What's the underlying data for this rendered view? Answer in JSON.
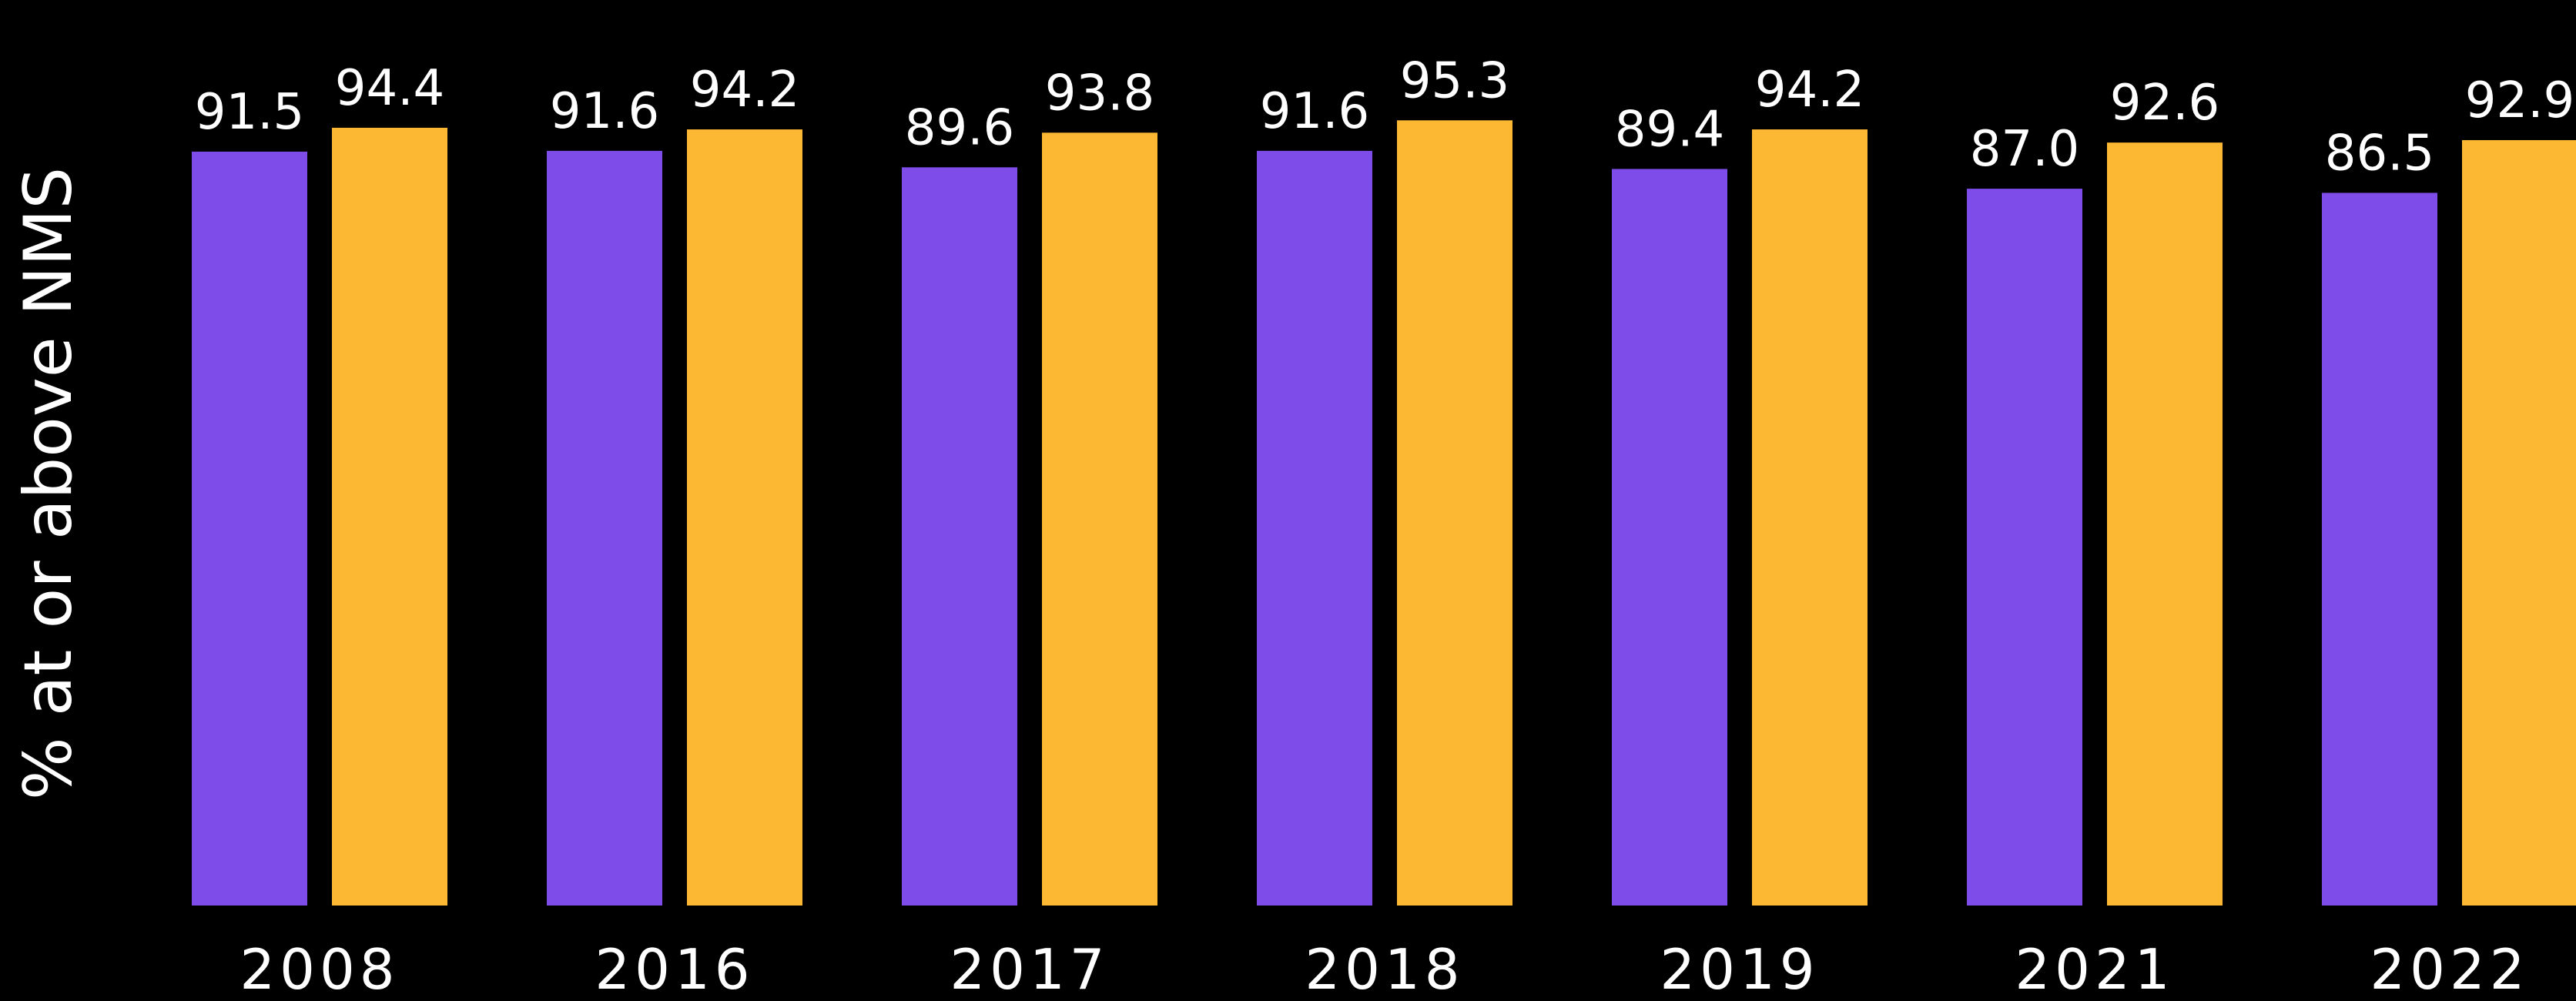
{
  "chart_data": {
    "type": "bar",
    "title": "",
    "xlabel": "",
    "ylabel": "% at or above NMS",
    "categories": [
      "2008",
      "2016",
      "2017",
      "2018",
      "2019",
      "2021",
      "2022"
    ],
    "series": [
      {
        "color": "#7e4ce8",
        "values": [
          91.5,
          91.6,
          89.6,
          91.6,
          89.4,
          87.0,
          86.5
        ]
      },
      {
        "color": "#fdb833",
        "values": [
          94.4,
          94.2,
          93.8,
          95.3,
          94.2,
          92.6,
          92.9
        ]
      }
    ],
    "ylim": [
      0,
      100
    ],
    "grid": false,
    "legend": "none",
    "data_label_decimals": 1
  }
}
